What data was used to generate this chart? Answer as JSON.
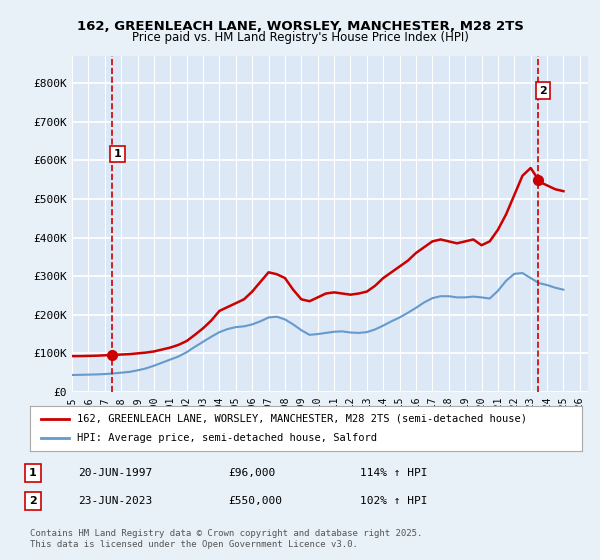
{
  "title1": "162, GREENLEACH LANE, WORSLEY, MANCHESTER, M28 2TS",
  "title2": "Price paid vs. HM Land Registry's House Price Index (HPI)",
  "ylabel": "",
  "xlim_start": 1995.0,
  "xlim_end": 2026.5,
  "ylim": [
    0,
    870000
  ],
  "yticks": [
    0,
    100000,
    200000,
    300000,
    400000,
    500000,
    600000,
    700000,
    800000
  ],
  "ytick_labels": [
    "£0",
    "£100K",
    "£200K",
    "£300K",
    "£400K",
    "£500K",
    "£600K",
    "£700K",
    "£800K"
  ],
  "background_color": "#e8f0f8",
  "plot_bg_color": "#dce8f5",
  "grid_color": "#ffffff",
  "red_line_color": "#cc0000",
  "blue_line_color": "#6699cc",
  "marker_color": "#cc0000",
  "dashed_line_color": "#cc0000",
  "point1_x": 1997.47,
  "point1_y": 96000,
  "point2_x": 2023.47,
  "point2_y": 550000,
  "annotation1": "1",
  "annotation2": "2",
  "legend_label1": "162, GREENLEACH LANE, WORSLEY, MANCHESTER, M28 2TS (semi-detached house)",
  "legend_label2": "HPI: Average price, semi-detached house, Salford",
  "table_row1": [
    "1",
    "20-JUN-1997",
    "£96,000",
    "114% ↑ HPI"
  ],
  "table_row2": [
    "2",
    "23-JUN-2023",
    "£550,000",
    "102% ↑ HPI"
  ],
  "footer": "Contains HM Land Registry data © Crown copyright and database right 2025.\nThis data is licensed under the Open Government Licence v3.0.",
  "red_data_x": [
    1995.0,
    1995.5,
    1996.0,
    1996.5,
    1997.0,
    1997.47,
    1997.5,
    1998.0,
    1998.5,
    1999.0,
    1999.5,
    2000.0,
    2000.5,
    2001.0,
    2001.5,
    2002.0,
    2002.5,
    2003.0,
    2003.5,
    2004.0,
    2004.5,
    2005.0,
    2005.5,
    2006.0,
    2006.5,
    2007.0,
    2007.5,
    2008.0,
    2008.5,
    2009.0,
    2009.5,
    2010.0,
    2010.5,
    2011.0,
    2011.5,
    2012.0,
    2012.5,
    2013.0,
    2013.5,
    2014.0,
    2014.5,
    2015.0,
    2015.5,
    2016.0,
    2016.5,
    2017.0,
    2017.5,
    2018.0,
    2018.5,
    2019.0,
    2019.5,
    2020.0,
    2020.5,
    2021.0,
    2021.5,
    2022.0,
    2022.5,
    2023.0,
    2023.47,
    2023.5,
    2024.0,
    2024.5,
    2025.0
  ],
  "red_data_y": [
    93000,
    93000,
    93500,
    94000,
    95000,
    96000,
    96000,
    97000,
    98000,
    100000,
    102000,
    105000,
    110000,
    115000,
    122000,
    132000,
    148000,
    165000,
    185000,
    210000,
    220000,
    230000,
    240000,
    260000,
    285000,
    310000,
    305000,
    295000,
    265000,
    240000,
    235000,
    245000,
    255000,
    258000,
    255000,
    252000,
    255000,
    260000,
    275000,
    295000,
    310000,
    325000,
    340000,
    360000,
    375000,
    390000,
    395000,
    390000,
    385000,
    390000,
    395000,
    380000,
    390000,
    420000,
    460000,
    510000,
    560000,
    580000,
    550000,
    545000,
    535000,
    525000,
    520000
  ],
  "blue_data_x": [
    1995.0,
    1995.5,
    1996.0,
    1996.5,
    1997.0,
    1997.5,
    1998.0,
    1998.5,
    1999.0,
    1999.5,
    2000.0,
    2000.5,
    2001.0,
    2001.5,
    2002.0,
    2002.5,
    2003.0,
    2003.5,
    2004.0,
    2004.5,
    2005.0,
    2005.5,
    2006.0,
    2006.5,
    2007.0,
    2007.5,
    2008.0,
    2008.5,
    2009.0,
    2009.5,
    2010.0,
    2010.5,
    2011.0,
    2011.5,
    2012.0,
    2012.5,
    2013.0,
    2013.5,
    2014.0,
    2014.5,
    2015.0,
    2015.5,
    2016.0,
    2016.5,
    2017.0,
    2017.5,
    2018.0,
    2018.5,
    2019.0,
    2019.5,
    2020.0,
    2020.5,
    2021.0,
    2021.5,
    2022.0,
    2022.5,
    2023.0,
    2023.5,
    2024.0,
    2024.5,
    2025.0
  ],
  "blue_data_y": [
    44000,
    44500,
    45000,
    45500,
    46500,
    48000,
    50000,
    52000,
    56000,
    61000,
    68000,
    76000,
    84000,
    92000,
    103000,
    117000,
    130000,
    143000,
    155000,
    163000,
    168000,
    170000,
    175000,
    183000,
    193000,
    195000,
    188000,
    175000,
    160000,
    148000,
    150000,
    153000,
    156000,
    157000,
    154000,
    153000,
    155000,
    162000,
    172000,
    183000,
    193000,
    205000,
    218000,
    232000,
    243000,
    248000,
    248000,
    245000,
    245000,
    247000,
    245000,
    242000,
    262000,
    288000,
    306000,
    308000,
    295000,
    282000,
    277000,
    270000,
    265000
  ]
}
